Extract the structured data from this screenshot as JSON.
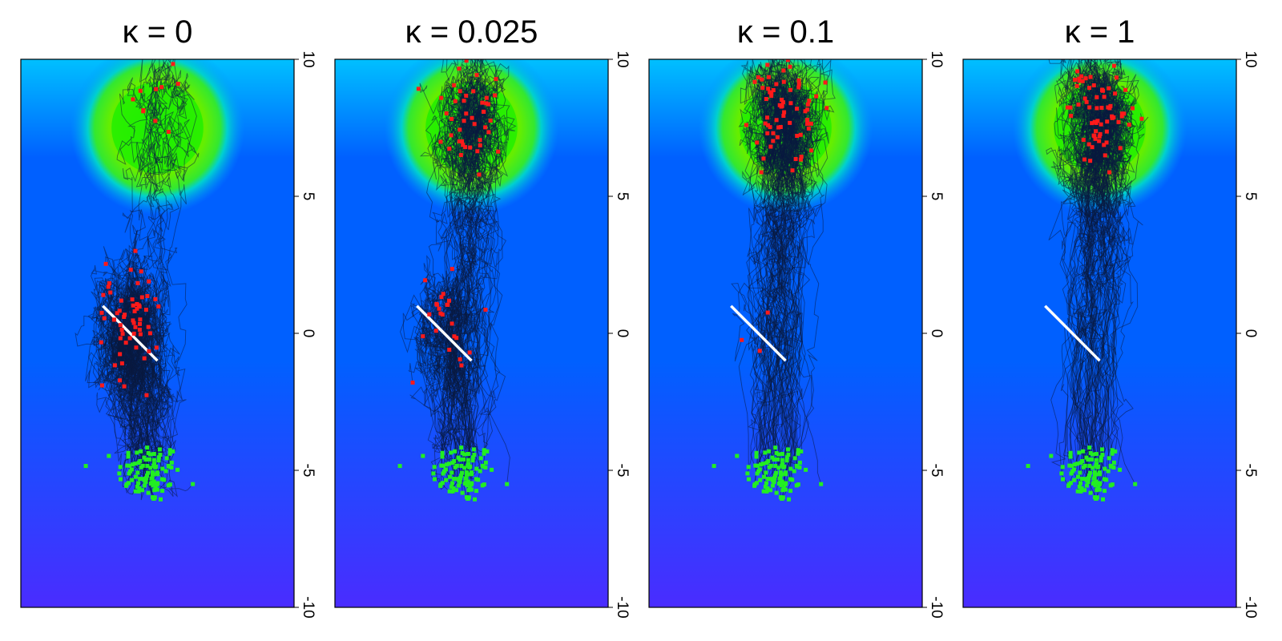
{
  "chart_data": [
    {
      "type": "scatter",
      "title": "κ = 0",
      "kappa": 0,
      "xlim": [
        -10,
        10
      ],
      "ylim": [
        -10,
        10
      ],
      "y_axis_side": "right",
      "y_ticks": [
        -10,
        -5,
        0,
        5,
        10
      ],
      "target_region": {
        "center": [
          0,
          7.5
        ],
        "radius": 1.6,
        "color": "#22ee00"
      },
      "barrier": {
        "from": [
          -4,
          1
        ],
        "to": [
          0,
          -1
        ],
        "color": "#ffffff"
      },
      "start_points_color": "#22ee22",
      "end_points_color": "#ff1a1a",
      "end_points_summary": "trajectories pile up along barrier; trail to target",
      "background_gradient": [
        "#4a2cff",
        "#0060ff",
        "#00c0ff",
        "#22ee00"
      ]
    },
    {
      "type": "scatter",
      "title": "κ = 0.025",
      "kappa": 0.025,
      "xlim": [
        -10,
        10
      ],
      "ylim": [
        -10,
        10
      ],
      "y_axis_side": "right",
      "y_ticks": [
        -10,
        -5,
        0,
        5,
        10
      ],
      "target_region": {
        "center": [
          0,
          7.5
        ],
        "radius": 1.6,
        "color": "#22ee00"
      },
      "barrier": {
        "from": [
          -4,
          1
        ],
        "to": [
          0,
          -1
        ],
        "color": "#ffffff"
      },
      "start_points_color": "#22ee22",
      "end_points_color": "#ff1a1a",
      "end_points_summary": "most reach target; some trail",
      "background_gradient": [
        "#4a2cff",
        "#0060ff",
        "#00c0ff",
        "#22ee00"
      ]
    },
    {
      "type": "scatter",
      "title": "κ = 0.1",
      "kappa": 0.1,
      "xlim": [
        -10,
        10
      ],
      "ylim": [
        -10,
        10
      ],
      "y_axis_side": "right",
      "y_ticks": [
        -10,
        -5,
        0,
        5,
        10
      ],
      "target_region": {
        "center": [
          0,
          7.5
        ],
        "radius": 1.6,
        "color": "#22ee00"
      },
      "barrier": {
        "from": [
          -4,
          1
        ],
        "to": [
          0,
          -1
        ],
        "color": "#ffffff"
      },
      "start_points_color": "#22ee22",
      "end_points_color": "#ff1a1a",
      "end_points_summary": "nearly all reach target",
      "background_gradient": [
        "#4a2cff",
        "#0060ff",
        "#00c0ff",
        "#22ee00"
      ]
    },
    {
      "type": "scatter",
      "title": "κ = 1",
      "kappa": 1,
      "xlim": [
        -10,
        10
      ],
      "ylim": [
        -10,
        10
      ],
      "y_axis_side": "right",
      "y_ticks": [
        -10,
        -5,
        0,
        5,
        10
      ],
      "target_region": {
        "center": [
          0,
          7.5
        ],
        "radius": 1.6,
        "color": "#22ee00"
      },
      "barrier": {
        "from": [
          -4,
          1
        ],
        "to": [
          0,
          -1
        ],
        "color": "#ffffff"
      },
      "start_points_color": "#22ee22",
      "end_points_color": "#ff1a1a",
      "end_points_summary": "all reach target",
      "background_gradient": [
        "#4a2cff",
        "#0060ff",
        "#00c0ff",
        "#22ee00"
      ]
    }
  ]
}
